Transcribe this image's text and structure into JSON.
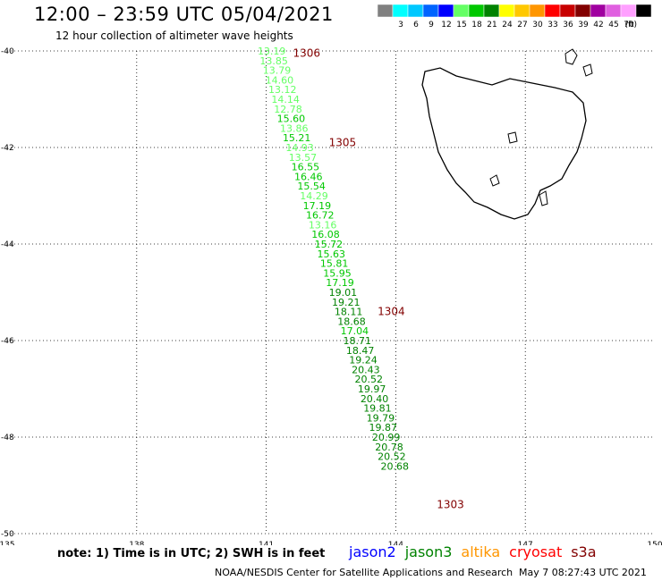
{
  "header": {
    "title": "12:00 – 23:59 UTC 05/04/2021",
    "subtitle": "12 hour collection of altimeter wave heights"
  },
  "legend": {
    "unit": "(ft)",
    "bins": [
      {
        "color": "#808080",
        "label": ""
      },
      {
        "color": "#00ffff",
        "label": "3"
      },
      {
        "color": "#00c8ff",
        "label": "6"
      },
      {
        "color": "#0064ff",
        "label": "9"
      },
      {
        "color": "#0000ff",
        "label": "12"
      },
      {
        "color": "#64ff64",
        "label": "15"
      },
      {
        "color": "#00c800",
        "label": "18"
      },
      {
        "color": "#008200",
        "label": "21"
      },
      {
        "color": "#ffff00",
        "label": "24"
      },
      {
        "color": "#ffc800",
        "label": "27"
      },
      {
        "color": "#ff9600",
        "label": "30"
      },
      {
        "color": "#ff0000",
        "label": "33"
      },
      {
        "color": "#c80000",
        "label": "36"
      },
      {
        "color": "#820000",
        "label": "39"
      },
      {
        "color": "#a000a0",
        "label": "42"
      },
      {
        "color": "#e060e0",
        "label": "45"
      },
      {
        "color": "#ffa0ff",
        "label": "70"
      },
      {
        "color": "#000000",
        "label": ""
      }
    ]
  },
  "map": {
    "lon_range": [
      135,
      150
    ],
    "lat_range": [
      -50,
      -40
    ],
    "lon_ticks": [
      "135",
      "138",
      "141",
      "144",
      "147",
      "150"
    ],
    "lat_ticks": [
      "-40",
      "-42",
      "-44",
      "-46",
      "-48",
      "-50"
    ],
    "grid": "dotted"
  },
  "track": {
    "points": [
      {
        "lat": -40.0,
        "lon": 140.8,
        "swh": "13.19"
      },
      {
        "lat": -40.2,
        "lon": 140.85,
        "swh": "13.85"
      },
      {
        "lat": -40.4,
        "lon": 140.92,
        "swh": "13.79"
      },
      {
        "lat": -40.6,
        "lon": 140.98,
        "swh": "14.60"
      },
      {
        "lat": -40.8,
        "lon": 141.05,
        "swh": "13.12"
      },
      {
        "lat": -41.0,
        "lon": 141.12,
        "swh": "14.14"
      },
      {
        "lat": -41.2,
        "lon": 141.18,
        "swh": "12.78"
      },
      {
        "lat": -41.4,
        "lon": 141.25,
        "swh": "15.60"
      },
      {
        "lat": -41.6,
        "lon": 141.32,
        "swh": "13.86"
      },
      {
        "lat": -41.8,
        "lon": 141.38,
        "swh": "15.21"
      },
      {
        "lat": -42.0,
        "lon": 141.45,
        "swh": "14.93"
      },
      {
        "lat": -42.2,
        "lon": 141.52,
        "swh": "13.57"
      },
      {
        "lat": -42.4,
        "lon": 141.58,
        "swh": "16.55"
      },
      {
        "lat": -42.6,
        "lon": 141.65,
        "swh": "16.46"
      },
      {
        "lat": -42.8,
        "lon": 141.72,
        "swh": "15.54"
      },
      {
        "lat": -43.0,
        "lon": 141.78,
        "swh": "14.29"
      },
      {
        "lat": -43.2,
        "lon": 141.85,
        "swh": "17.19"
      },
      {
        "lat": -43.4,
        "lon": 141.92,
        "swh": "16.72"
      },
      {
        "lat": -43.6,
        "lon": 141.98,
        "swh": "13.16"
      },
      {
        "lat": -43.8,
        "lon": 142.05,
        "swh": "16.08"
      },
      {
        "lat": -44.0,
        "lon": 142.12,
        "swh": "15.72"
      },
      {
        "lat": -44.2,
        "lon": 142.18,
        "swh": "15.63"
      },
      {
        "lat": -44.4,
        "lon": 142.25,
        "swh": "15.81"
      },
      {
        "lat": -44.6,
        "lon": 142.32,
        "swh": "15.95"
      },
      {
        "lat": -44.8,
        "lon": 142.38,
        "swh": "17.19"
      },
      {
        "lat": -45.0,
        "lon": 142.45,
        "swh": "19.01"
      },
      {
        "lat": -45.2,
        "lon": 142.52,
        "swh": "19.21"
      },
      {
        "lat": -45.4,
        "lon": 142.58,
        "swh": "18.11"
      },
      {
        "lat": -45.6,
        "lon": 142.65,
        "swh": "18.68"
      },
      {
        "lat": -45.8,
        "lon": 142.72,
        "swh": "17.04"
      },
      {
        "lat": -46.0,
        "lon": 142.78,
        "swh": "18.71"
      },
      {
        "lat": -46.2,
        "lon": 142.85,
        "swh": "18.47"
      },
      {
        "lat": -46.4,
        "lon": 142.92,
        "swh": "19.24"
      },
      {
        "lat": -46.6,
        "lon": 142.98,
        "swh": "20.43"
      },
      {
        "lat": -46.8,
        "lon": 143.05,
        "swh": "20.52"
      },
      {
        "lat": -47.0,
        "lon": 143.12,
        "swh": "19.97"
      },
      {
        "lat": -47.2,
        "lon": 143.18,
        "swh": "20.40"
      },
      {
        "lat": -47.4,
        "lon": 143.25,
        "swh": "19.81"
      },
      {
        "lat": -47.6,
        "lon": 143.32,
        "swh": "19.79"
      },
      {
        "lat": -47.8,
        "lon": 143.38,
        "swh": "19.87"
      },
      {
        "lat": -48.0,
        "lon": 143.45,
        "swh": "20.99"
      },
      {
        "lat": -48.2,
        "lon": 143.52,
        "swh": "20.78"
      },
      {
        "lat": -48.4,
        "lon": 143.58,
        "swh": "20.52"
      },
      {
        "lat": -48.6,
        "lon": 143.65,
        "swh": "20.68"
      }
    ],
    "time_labels": [
      {
        "lat": -40.05,
        "lon": 141.62,
        "text": "1306"
      },
      {
        "lat": -41.9,
        "lon": 142.45,
        "text": "1305"
      },
      {
        "lat": -45.4,
        "lon": 143.58,
        "text": "1304"
      },
      {
        "lat": -49.4,
        "lon": 144.95,
        "text": "1303"
      }
    ]
  },
  "footer": {
    "note": "note:  1) Time is in UTC;  2) SWH is in feet",
    "satellites": [
      {
        "name": "jason2",
        "color": "#0000ff"
      },
      {
        "name": "jason3",
        "color": "#008200"
      },
      {
        "name": "altika",
        "color": "#ff9600"
      },
      {
        "name": "cryosat",
        "color": "#ff0000"
      },
      {
        "name": "s3a",
        "color": "#820000"
      }
    ],
    "credit": "NOAA/NESDIS Center for Satellite Applications and Research",
    "timestamp": "May  7 08:27:43 UTC 2021"
  }
}
